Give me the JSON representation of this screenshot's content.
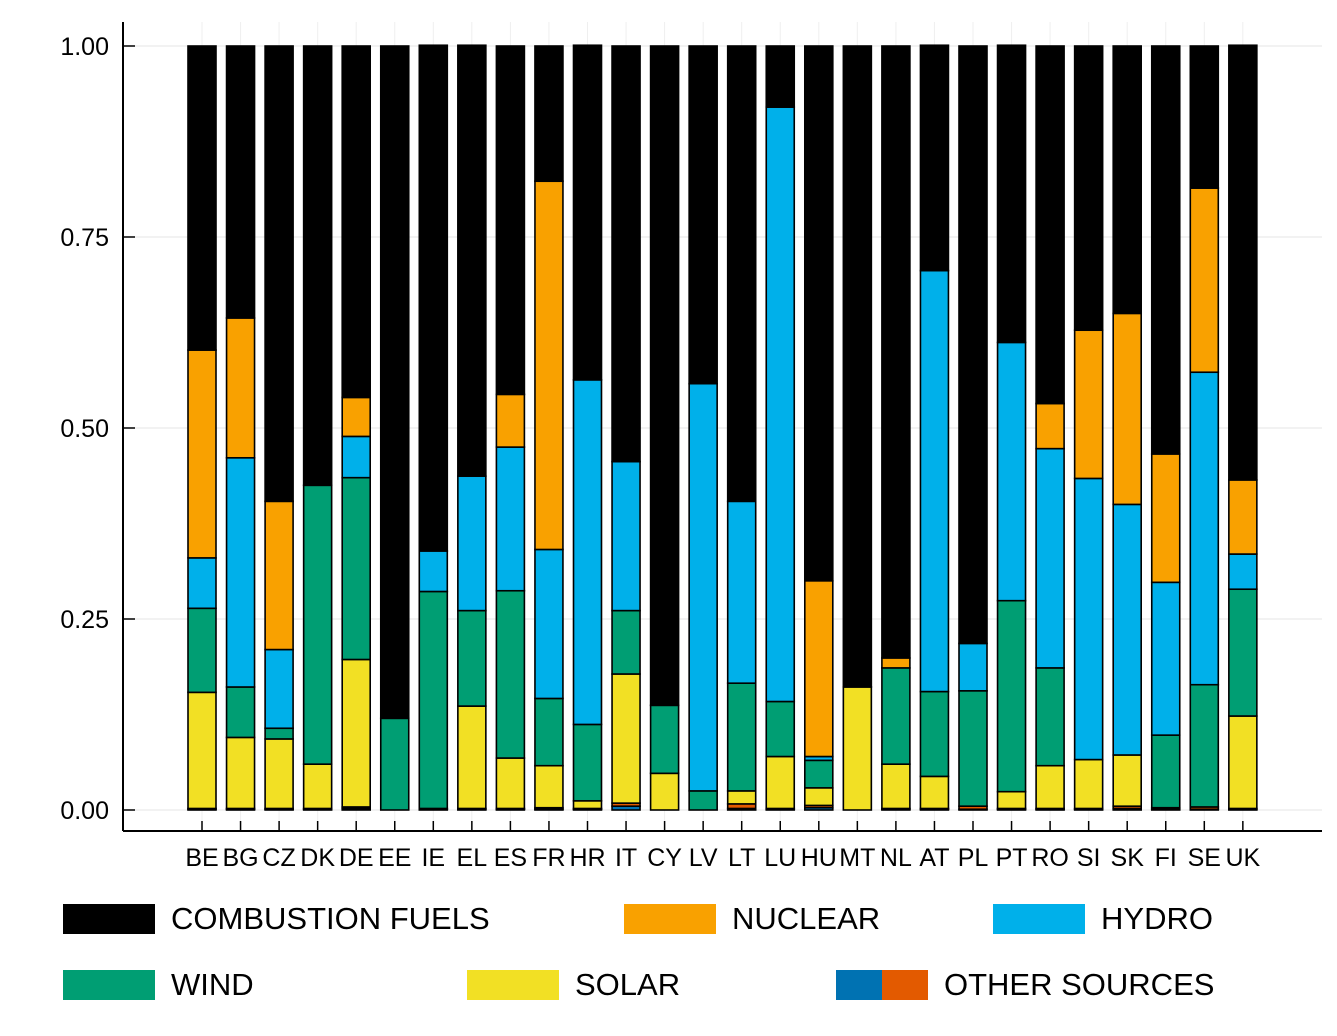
{
  "chart_data": {
    "type": "bar",
    "stacked": true,
    "title": "",
    "xlabel": "",
    "ylabel": "",
    "ylim": [
      0,
      1.0
    ],
    "yticks": [
      "0.00",
      "0.25",
      "0.50",
      "0.75",
      "1.00"
    ],
    "grid": true,
    "legend_position": "bottom",
    "categories": [
      "BE",
      "BG",
      "CZ",
      "DK",
      "DE",
      "EE",
      "IE",
      "EL",
      "ES",
      "FR",
      "HR",
      "IT",
      "CY",
      "LV",
      "LT",
      "LU",
      "HU",
      "MT",
      "NL",
      "AT",
      "PL",
      "PT",
      "RO",
      "SI",
      "SK",
      "FI",
      "SE",
      "UK"
    ],
    "series": [
      {
        "name": "OTHER SOURCES",
        "color": "#0072b2",
        "values": [
          0.001,
          0.001,
          0.001,
          0.001,
          0.002,
          0.0,
          0.001,
          0.001,
          0.001,
          0.001,
          0.001,
          0.005,
          0.0,
          0.0,
          0.002,
          0.001,
          0.003,
          0.0,
          0.001,
          0.001,
          0.001,
          0.001,
          0.001,
          0.001,
          0.002,
          0.001,
          0.001,
          0.001
        ]
      },
      {
        "name": "OTHER SOURCES",
        "color": "#e35a00",
        "values": [
          0.001,
          0.001,
          0.001,
          0.001,
          0.002,
          0.0,
          0.001,
          0.001,
          0.001,
          0.002,
          0.001,
          0.004,
          0.0,
          0.0,
          0.006,
          0.001,
          0.003,
          0.0,
          0.001,
          0.001,
          0.004,
          0.001,
          0.001,
          0.001,
          0.003,
          0.002,
          0.003,
          0.001
        ]
      },
      {
        "name": "SOLAR",
        "color": "#f2e024",
        "values": [
          0.152,
          0.093,
          0.091,
          0.058,
          0.193,
          0.0,
          0.0,
          0.134,
          0.066,
          0.055,
          0.01,
          0.169,
          0.048,
          0.0,
          0.017,
          0.068,
          0.023,
          0.161,
          0.058,
          0.042,
          0.0,
          0.022,
          0.056,
          0.064,
          0.067,
          0.0,
          0.0,
          0.121
        ]
      },
      {
        "name": "WIND",
        "color": "#009e73",
        "values": [
          0.11,
          0.066,
          0.014,
          0.365,
          0.238,
          0.12,
          0.284,
          0.125,
          0.219,
          0.088,
          0.1,
          0.083,
          0.089,
          0.025,
          0.141,
          0.072,
          0.036,
          0.0,
          0.126,
          0.111,
          0.151,
          0.25,
          0.128,
          0.0,
          0.0,
          0.095,
          0.16,
          0.166
        ]
      },
      {
        "name": "HYDRO",
        "color": "#00b0ea",
        "values": [
          0.066,
          0.3,
          0.103,
          0.0,
          0.054,
          0.0,
          0.053,
          0.176,
          0.188,
          0.195,
          0.451,
          0.195,
          0.0,
          0.533,
          0.238,
          0.778,
          0.005,
          0.0,
          0.0,
          0.551,
          0.062,
          0.338,
          0.287,
          0.368,
          0.328,
          0.2,
          0.409,
          0.046
        ]
      },
      {
        "name": "NUCLEAR",
        "color": "#f9a100",
        "values": [
          0.272,
          0.183,
          0.194,
          0.0,
          0.051,
          0.0,
          0.0,
          0.0,
          0.069,
          0.482,
          0.0,
          0.0,
          0.0,
          0.0,
          0.0,
          0.0,
          0.23,
          0.0,
          0.013,
          0.0,
          0.0,
          0.0,
          0.059,
          0.194,
          0.25,
          0.168,
          0.241,
          0.097
        ]
      },
      {
        "name": "COMBUSTION FUELS",
        "color": "#000000",
        "values": [
          0.398,
          0.356,
          0.596,
          0.575,
          0.46,
          0.88,
          0.662,
          0.564,
          0.456,
          0.177,
          0.438,
          0.544,
          0.863,
          0.442,
          0.596,
          0.08,
          0.7,
          0.839,
          0.801,
          0.295,
          0.782,
          0.389,
          0.468,
          0.372,
          0.35,
          0.534,
          0.186,
          0.569
        ]
      }
    ]
  },
  "legend": {
    "items": [
      {
        "label": "COMBUSTION FUELS",
        "color": "#000000"
      },
      {
        "label": "NUCLEAR",
        "color": "#f9a100"
      },
      {
        "label": "HYDRO",
        "color": "#00b0ea"
      },
      {
        "label": "WIND",
        "color": "#009e73"
      },
      {
        "label": "SOLAR",
        "color": "#f2e024"
      },
      {
        "label": "OTHER SOURCES",
        "colors": [
          "#0072b2",
          "#e35a00"
        ]
      }
    ]
  }
}
